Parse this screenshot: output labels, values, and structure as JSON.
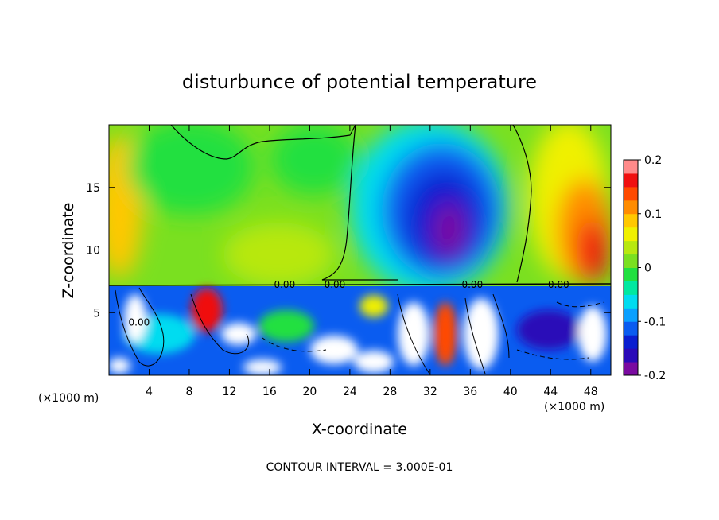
{
  "chart_data": {
    "type": "heatmap",
    "title": "disturbunce of potential temperature",
    "xlabel": "X-coordinate",
    "ylabel": "Z-coordinate",
    "x_unit": "(×1000 m)",
    "x_unit_right": "(×1000 m)",
    "xlim": [
      0,
      50
    ],
    "ylim": [
      0,
      20
    ],
    "x_ticks": [
      4,
      8,
      12,
      16,
      20,
      24,
      28,
      32,
      36,
      40,
      44,
      48
    ],
    "y_ticks": [
      5,
      10,
      15
    ],
    "colorbar": {
      "range": [
        -0.2,
        0.2
      ],
      "ticks": [
        -0.2,
        -0.1,
        0,
        0.1,
        0.2
      ],
      "tick_labels": [
        "-0.2",
        "-0.1",
        "0",
        "0.1",
        "0.2"
      ],
      "colors": [
        "#7a0aa0",
        "#2a0ab8",
        "#0a1ed0",
        "#0a5cf0",
        "#0aa0ff",
        "#00dcf0",
        "#00e8a0",
        "#20e040",
        "#7ae020",
        "#b8e810",
        "#f0f000",
        "#ffc800",
        "#ff8c00",
        "#ff4a00",
        "#f01010",
        "#ff8a8a"
      ]
    },
    "contour_labels": [
      "0.00",
      "0.00",
      "0.00",
      "0.00",
      "0.00"
    ],
    "footer": "CONTOUR INTERVAL = 3.000E-01"
  }
}
